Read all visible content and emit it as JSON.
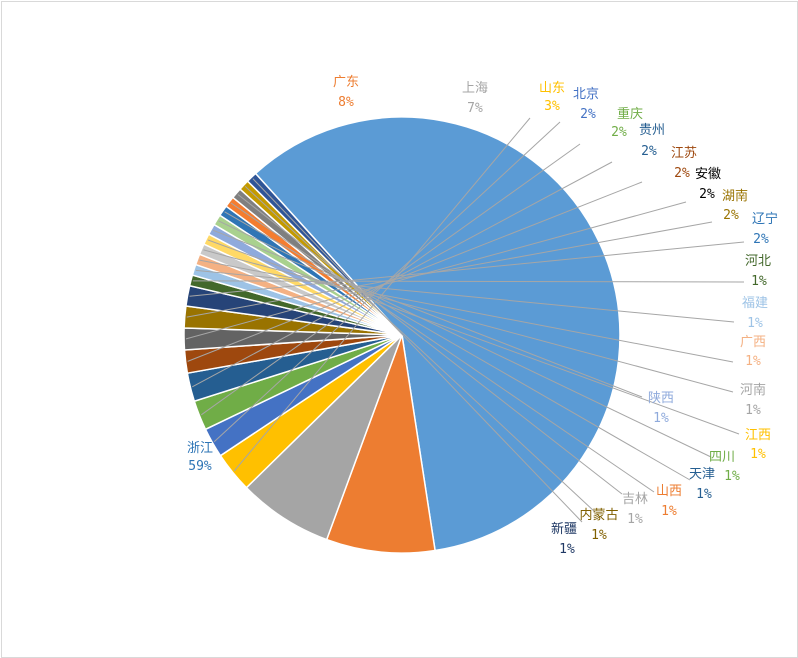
{
  "chart_data": {
    "type": "pie",
    "title": "",
    "slices": [
      {
        "label": "浙江",
        "pct_label": "59%",
        "value": 59,
        "color": "#5B9BD5",
        "name_color": "#2E75B6",
        "pct_color": "#2E75B6"
      },
      {
        "label": "广东",
        "pct_label": "8%",
        "value": 8,
        "color": "#ED7D31",
        "name_color": "#ED7D31",
        "pct_color": "#ED7D31"
      },
      {
        "label": "上海",
        "pct_label": "7%",
        "value": 7,
        "color": "#A5A5A5",
        "name_color": "#A5A5A5",
        "pct_color": "#A5A5A5"
      },
      {
        "label": "山东",
        "pct_label": "3%",
        "value": 3,
        "color": "#FFC000",
        "name_color": "#FFC000",
        "pct_color": "#FFC000"
      },
      {
        "label": "北京",
        "pct_label": "2%",
        "value": 2.2,
        "color": "#4472C4",
        "name_color": "#4472C4",
        "pct_color": "#4472C4"
      },
      {
        "label": "重庆",
        "pct_label": "2%",
        "value": 2.2,
        "color": "#70AD47",
        "name_color": "#70AD47",
        "pct_color": "#70AD47"
      },
      {
        "label": "贵州",
        "pct_label": "2%",
        "value": 2.1,
        "color": "#255E91",
        "name_color": "#255E91",
        "pct_color": "#255E91"
      },
      {
        "label": "江苏",
        "pct_label": "2%",
        "value": 1.7,
        "color": "#9E480E",
        "name_color": "#9E480E",
        "pct_color": "#9E480E"
      },
      {
        "label": "安徽",
        "pct_label": "2%",
        "value": 1.6,
        "color": "#636363",
        "name_color": "#000000",
        "pct_color": "#000000"
      },
      {
        "label": "湖南",
        "pct_label": "2%",
        "value": 1.6,
        "color": "#997300",
        "name_color": "#997300",
        "pct_color": "#997300"
      },
      {
        "label": "辽宁",
        "pct_label": "2%",
        "value": 1.5,
        "color": "#264478",
        "name_color": "#2E75B6",
        "pct_color": "#2E75B6"
      },
      {
        "label": "河北",
        "pct_label": "1%",
        "value": 0.8,
        "color": "#43682B",
        "name_color": "#43682B",
        "pct_color": "#43682B"
      },
      {
        "label": "福建",
        "pct_label": "1%",
        "value": 0.8,
        "color": "#9DC3E6",
        "name_color": "#9DC3E6",
        "pct_color": "#9DC3E6"
      },
      {
        "label": "广西",
        "pct_label": "1%",
        "value": 0.8,
        "color": "#F4B183",
        "name_color": "#F4B183",
        "pct_color": "#F4B183"
      },
      {
        "label": "河南",
        "pct_label": "1%",
        "value": 0.8,
        "color": "#C9C9C9",
        "name_color": "#A5A5A5",
        "pct_color": "#A5A5A5"
      },
      {
        "label": "江西",
        "pct_label": "1%",
        "value": 0.8,
        "color": "#FFD966",
        "name_color": "#FFC000",
        "pct_color": "#FFC000"
      },
      {
        "label": "陕西",
        "pct_label": "1%",
        "value": 0.8,
        "color": "#8FAADC",
        "name_color": "#8FAADC",
        "pct_color": "#8FAADC"
      },
      {
        "label": "四川",
        "pct_label": "1%",
        "value": 0.8,
        "color": "#A9D18E",
        "name_color": "#70AD47",
        "pct_color": "#70AD47"
      },
      {
        "label": "天津",
        "pct_label": "1%",
        "value": 0.8,
        "color": "#2F75B5",
        "name_color": "#255E91",
        "pct_color": "#255E91"
      },
      {
        "label": "山西",
        "pct_label": "1%",
        "value": 0.8,
        "color": "#F47D30",
        "name_color": "#ED7D31",
        "pct_color": "#ED7D31"
      },
      {
        "label": "吉林",
        "pct_label": "1%",
        "value": 0.8,
        "color": "#7F7F7F",
        "name_color": "#A5A5A5",
        "pct_color": "#A5A5A5"
      },
      {
        "label": "内蒙古",
        "pct_label": "1%",
        "value": 0.8,
        "color": "#C49A00",
        "name_color": "#806000",
        "pct_color": "#806000"
      },
      {
        "label": "新疆",
        "pct_label": "1%",
        "value": 0.8,
        "color": "#2F5597",
        "name_color": "#1F3864",
        "pct_color": "#1F3864"
      }
    ]
  }
}
